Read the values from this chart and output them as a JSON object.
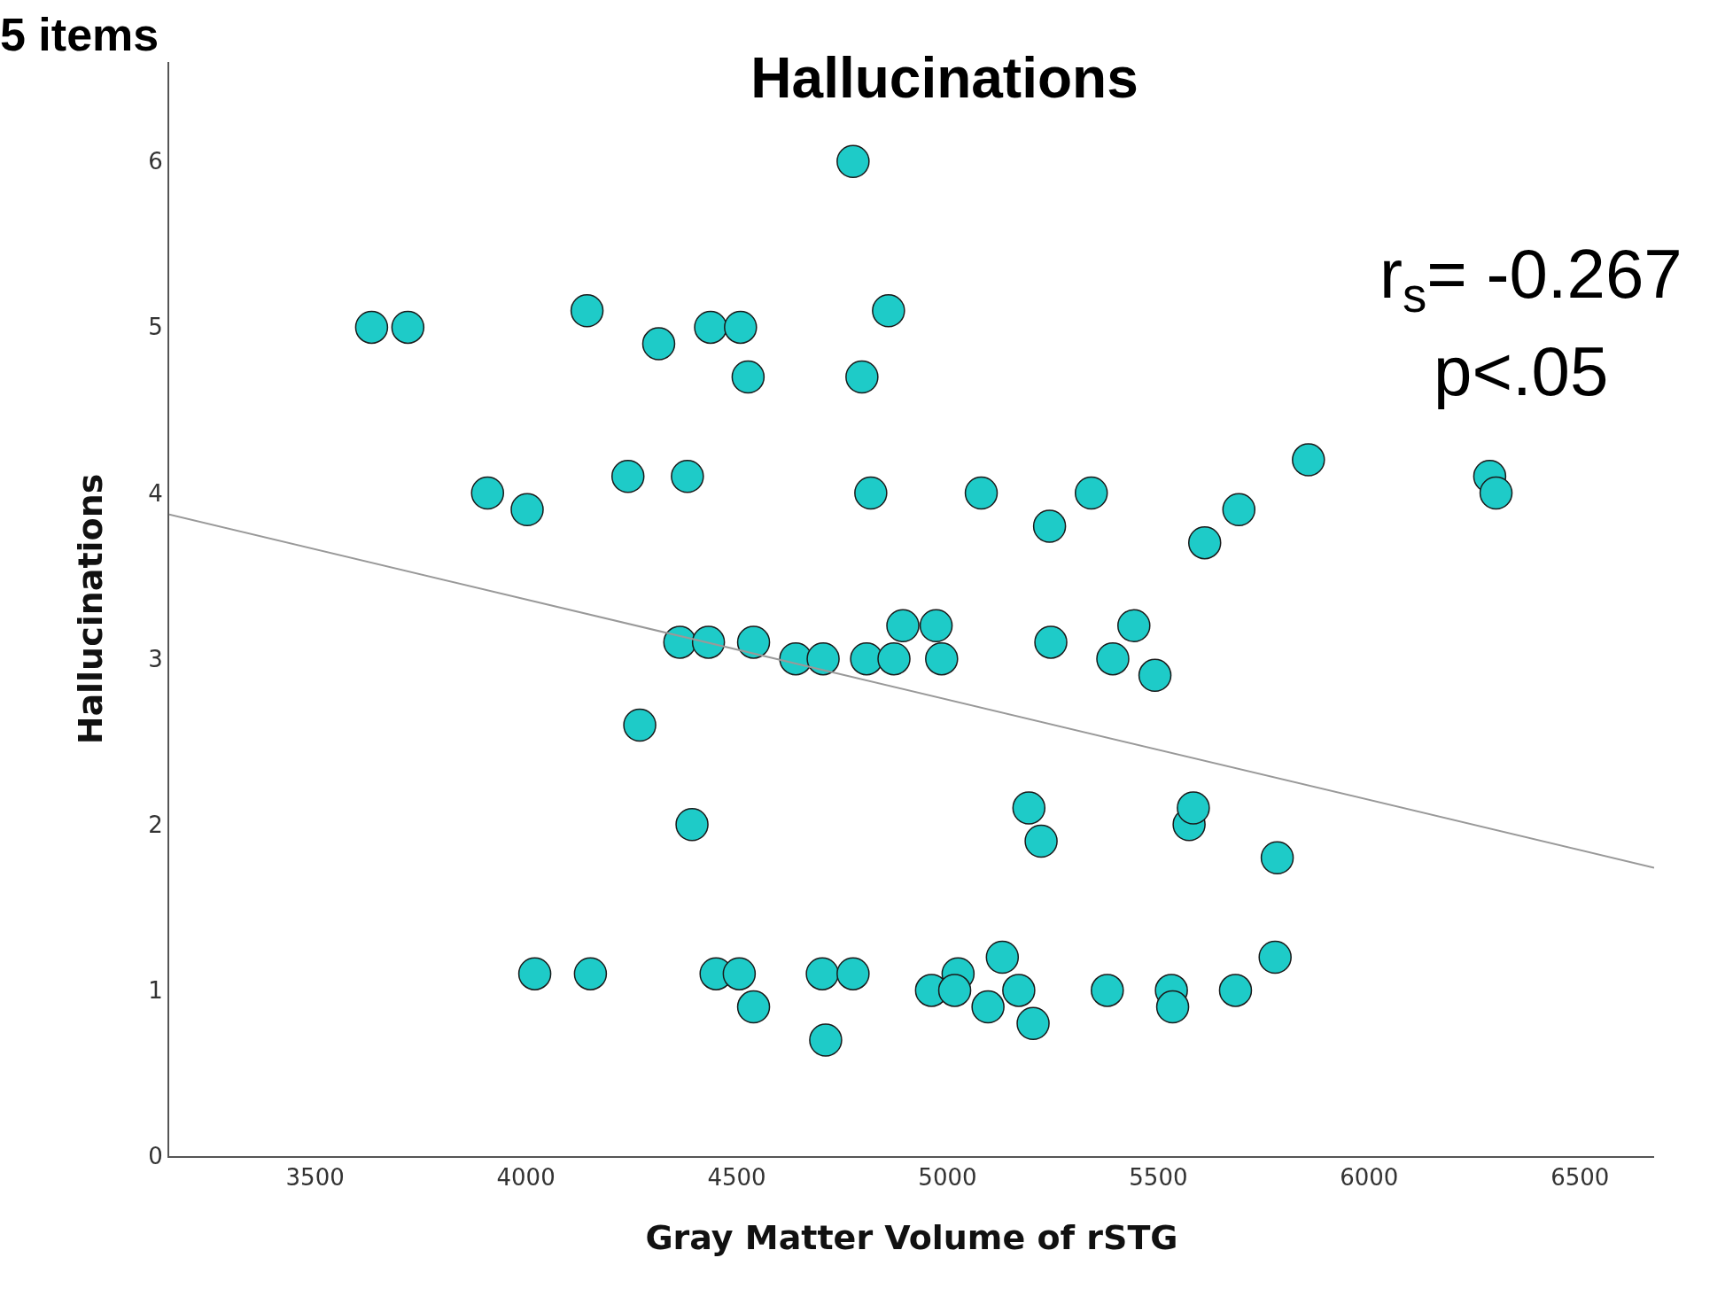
{
  "chart_data": {
    "type": "scatter",
    "title": "Hallucinations",
    "xlabel": "Gray Matter Volume of rSTG",
    "ylabel": "Hallucinations",
    "annotations": [
      "5 items",
      "r$_{s}$= -0.267",
      "p<.05"
    ],
    "xlim": [
      3154,
      6676
    ],
    "ylim": [
      0,
      6.6
    ],
    "xticks": [
      3500,
      4000,
      4500,
      5000,
      5500,
      6000,
      6500
    ],
    "yticks": [
      0,
      1,
      2,
      3,
      4,
      5,
      6
    ],
    "marker": "circle",
    "series": [
      {
        "color": "#1ecbc8",
        "x": [
          3634,
          3720,
          4145,
          4315,
          4438,
          4509,
          4527,
          4776,
          4860,
          4797,
          3909,
          4003,
          4242,
          4383,
          4818,
          5080,
          5242,
          5341,
          5610,
          5691,
          5856,
          6286,
          6301,
          4365,
          4433,
          4540,
          4640,
          4705,
          4808,
          4873,
          4894,
          4973,
          4986,
          5245,
          5392,
          5442,
          5492,
          4270,
          4394,
          5193,
          5222,
          5573,
          5583,
          5782,
          4021,
          4153,
          4451,
          4506,
          4540,
          4703,
          4776,
          4711,
          4962,
          5025,
          5017,
          5096,
          5130,
          5169,
          5203,
          5379,
          5531,
          5534,
          5683,
          5777
        ],
        "values": [
          5.0,
          5.0,
          5.1,
          4.9,
          5.0,
          5.0,
          4.7,
          6.0,
          5.1,
          4.7,
          4.0,
          3.9,
          4.1,
          4.1,
          4.0,
          4.0,
          3.8,
          4.0,
          3.7,
          3.9,
          4.2,
          4.1,
          4.0,
          3.1,
          3.1,
          3.1,
          3.0,
          3.0,
          3.0,
          3.0,
          3.2,
          3.2,
          3.0,
          3.1,
          3.0,
          3.2,
          2.9,
          2.6,
          2.0,
          2.1,
          1.9,
          2.0,
          2.1,
          1.8,
          1.1,
          1.1,
          1.1,
          1.1,
          0.9,
          1.1,
          1.1,
          0.7,
          1.0,
          1.1,
          1.0,
          0.9,
          1.2,
          1.0,
          0.8,
          1.0,
          1.0,
          0.9,
          1.0,
          1.2
        ]
      },
      {
        "type": "line",
        "color": "#999999",
        "x": [
          3154,
          6676
        ],
        "values": [
          3.87,
          1.74
        ],
        "line_style": "solid",
        "marker": "none"
      }
    ]
  }
}
